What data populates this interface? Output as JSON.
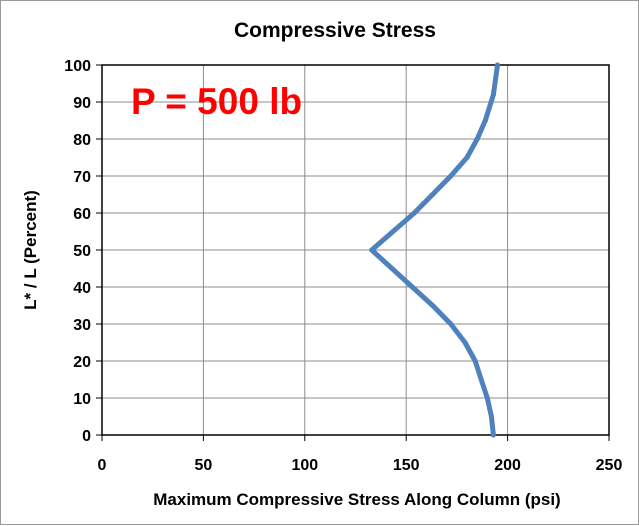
{
  "chart_data": {
    "type": "line",
    "title": "Compressive Stress",
    "xlabel": "Maximum Compressive Stress Along Column (psi)",
    "ylabel": "L* / L  (Percent)",
    "xlim": [
      0,
      250
    ],
    "ylim": [
      0,
      100
    ],
    "x_ticks": [
      "0",
      "50",
      "100",
      "150",
      "200",
      "250"
    ],
    "y_ticks": [
      "0",
      "10",
      "20",
      "30",
      "40",
      "50",
      "60",
      "70",
      "80",
      "90",
      "100"
    ],
    "grid": true,
    "legend": "none",
    "annotation": "P = 500 lb",
    "series": [
      {
        "color": "#4f81bd",
        "points": [
          {
            "x": 193,
            "y": 0
          },
          {
            "x": 192,
            "y": 5
          },
          {
            "x": 190,
            "y": 10
          },
          {
            "x": 187,
            "y": 15
          },
          {
            "x": 184,
            "y": 20
          },
          {
            "x": 179,
            "y": 25
          },
          {
            "x": 172,
            "y": 30
          },
          {
            "x": 163,
            "y": 35
          },
          {
            "x": 153,
            "y": 40
          },
          {
            "x": 133,
            "y": 50
          },
          {
            "x": 154,
            "y": 60
          },
          {
            "x": 172,
            "y": 70
          },
          {
            "x": 180,
            "y": 75
          },
          {
            "x": 185,
            "y": 80
          },
          {
            "x": 189,
            "y": 85
          },
          {
            "x": 193,
            "y": 92
          },
          {
            "x": 195,
            "y": 100
          }
        ]
      }
    ],
    "colors": {
      "series": "#4f81bd",
      "annotation": "#ff0000",
      "grid": "#8c8c8c",
      "plot_border": "#000000"
    }
  }
}
